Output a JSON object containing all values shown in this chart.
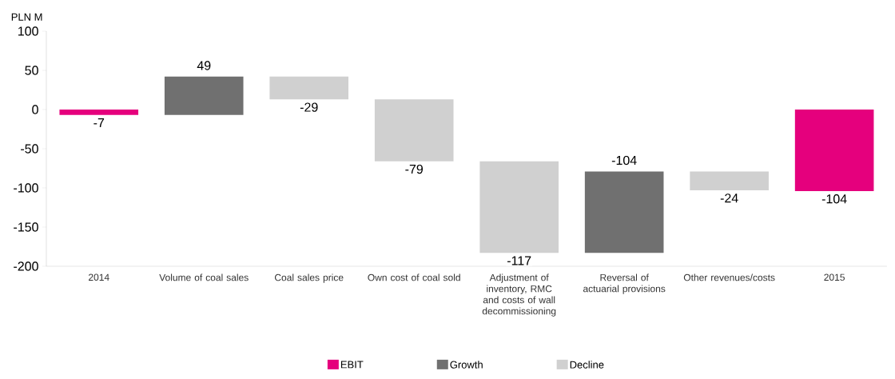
{
  "chart_data": {
    "type": "bar",
    "ylabel": "PLN M",
    "categories": [
      "2014",
      "Volume of coal sales",
      "Coal sales price",
      "Own cost of coal sold",
      "Adjustment of inventory, RMC and costs of wall decommissioning",
      "Reversal of actuarial provisions",
      "Other revenues/costs",
      "2015"
    ],
    "series": [
      {
        "name": "EBIT",
        "color": "#e5007d",
        "values": [
          -7,
          null,
          null,
          null,
          null,
          null,
          null,
          -104
        ],
        "base": [
          0,
          null,
          null,
          null,
          null,
          null,
          null,
          0
        ]
      },
      {
        "name": "Growth",
        "color": "#707070",
        "values": [
          null,
          49,
          null,
          null,
          null,
          104,
          null,
          null
        ],
        "base": [
          null,
          -7,
          null,
          null,
          null,
          -183,
          null,
          null
        ]
      },
      {
        "name": "Decline",
        "color": "#d0d0d0",
        "values": [
          null,
          null,
          -29,
          -79,
          -117,
          null,
          -24,
          null
        ],
        "base": [
          null,
          null,
          42,
          13,
          -66,
          null,
          -79,
          null
        ]
      }
    ],
    "value_labels": [
      "-7",
      "49",
      "-29",
      "-79",
      "-117",
      "-104",
      "-24",
      "-104"
    ],
    "ylim": [
      -200,
      100
    ],
    "yticks": [
      -200,
      -150,
      -100,
      -50,
      0,
      50,
      100
    ],
    "legend": "bottom"
  }
}
